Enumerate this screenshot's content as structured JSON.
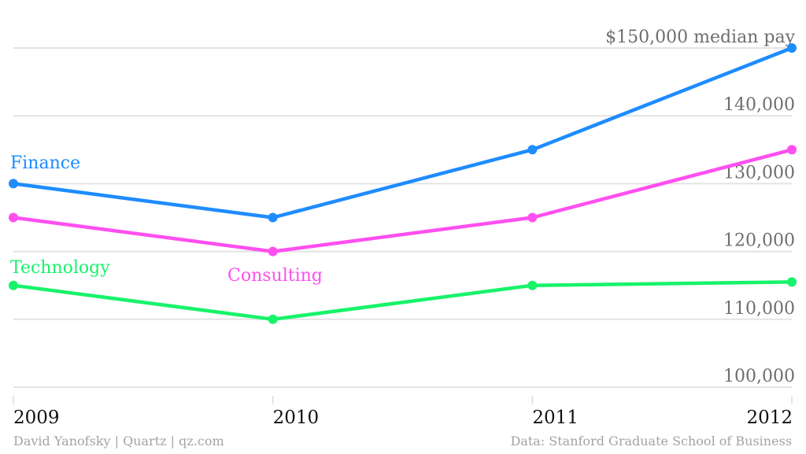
{
  "chart_data": {
    "type": "line",
    "title": "",
    "xlabel": "",
    "ylabel": "",
    "x": [
      "2009",
      "2010",
      "2011",
      "2012"
    ],
    "ylim": [
      100000,
      150000
    ],
    "yticks": [
      {
        "value": 100000,
        "label": "100,000"
      },
      {
        "value": 110000,
        "label": "110,000"
      },
      {
        "value": 120000,
        "label": "120,000"
      },
      {
        "value": 130000,
        "label": "130,000"
      },
      {
        "value": 140000,
        "label": "140,000"
      },
      {
        "value": 150000,
        "label": "$150,000 median pay"
      }
    ],
    "grid": true,
    "legend": "inline labels",
    "series": [
      {
        "name": "Finance",
        "color": "#1e8cff",
        "values": [
          130000,
          125000,
          135000,
          150000
        ]
      },
      {
        "name": "Consulting",
        "color": "#ff4ff0",
        "values": [
          125000,
          120000,
          125000,
          135000
        ]
      },
      {
        "name": "Technology",
        "color": "#17f36a",
        "values": [
          115000,
          110000,
          115000,
          115500
        ]
      }
    ]
  },
  "footer": {
    "credit": "David Yanofsky | Quartz | qz.com",
    "source": "Data: Stanford Graduate School of Business"
  }
}
